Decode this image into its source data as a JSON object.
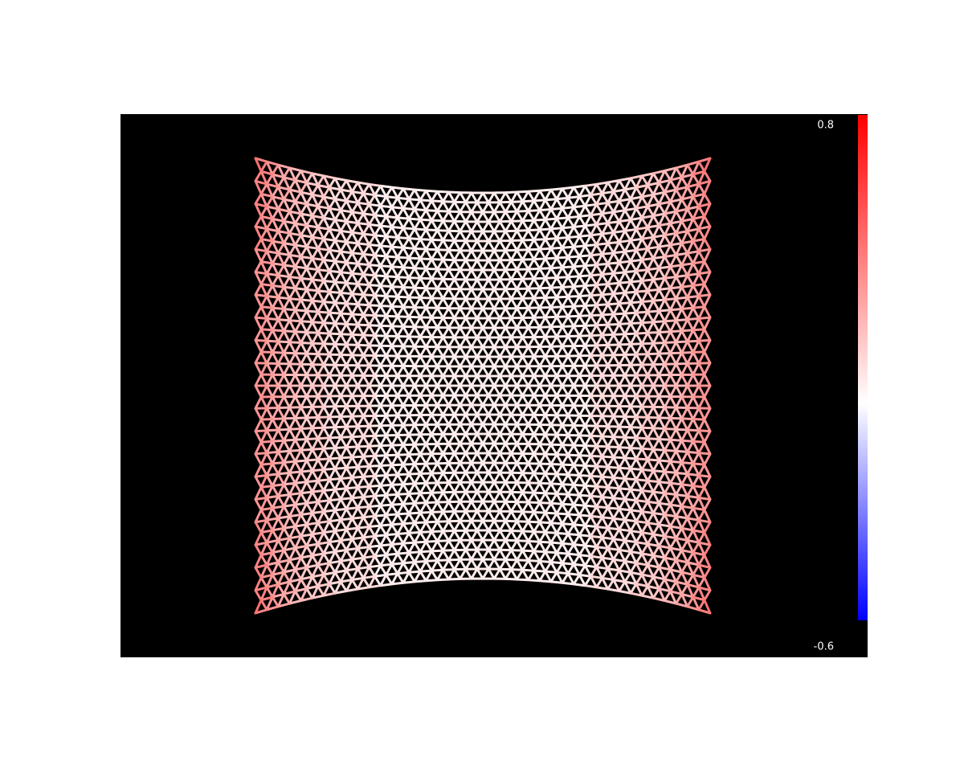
{
  "colorbar": {
    "max": 0.8,
    "min": -0.6
  }
}
